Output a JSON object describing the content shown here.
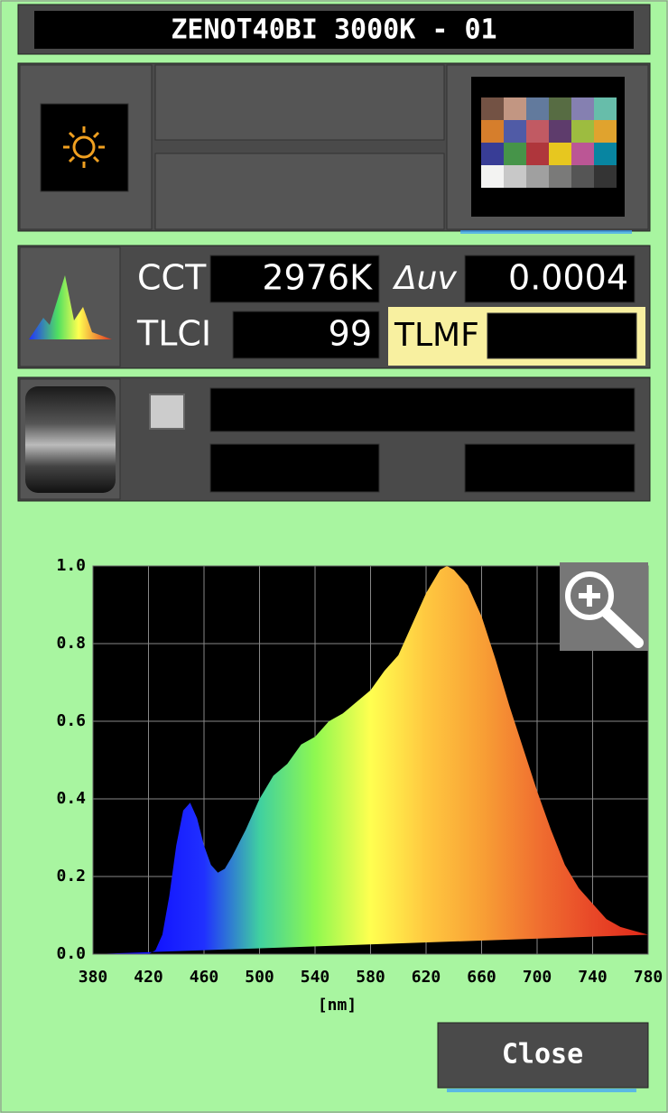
{
  "header": {
    "title": "ZENOT40BI 3000K - 01"
  },
  "measurements": {
    "cct": {
      "label": "CCT",
      "value": "2976K"
    },
    "duv": {
      "label": "Δuv",
      "value": "0.0004"
    },
    "tlci": {
      "label": "TLCI",
      "value": "99"
    },
    "tlmf": {
      "label": "TLMF"
    }
  },
  "chart_data": {
    "type": "area",
    "x": [
      380,
      390,
      400,
      410,
      420,
      425,
      430,
      435,
      440,
      445,
      450,
      455,
      460,
      465,
      470,
      475,
      480,
      490,
      500,
      510,
      520,
      530,
      540,
      550,
      560,
      570,
      580,
      590,
      600,
      610,
      620,
      630,
      635,
      640,
      650,
      660,
      670,
      680,
      690,
      700,
      710,
      720,
      730,
      740,
      750,
      760,
      770,
      780
    ],
    "values": [
      0,
      0,
      0,
      0,
      0,
      0.01,
      0.05,
      0.15,
      0.28,
      0.37,
      0.39,
      0.35,
      0.28,
      0.23,
      0.21,
      0.22,
      0.25,
      0.32,
      0.4,
      0.46,
      0.49,
      0.54,
      0.56,
      0.6,
      0.62,
      0.65,
      0.68,
      0.73,
      0.77,
      0.85,
      0.93,
      0.99,
      1.0,
      0.99,
      0.95,
      0.87,
      0.76,
      0.64,
      0.53,
      0.42,
      0.32,
      0.23,
      0.17,
      0.13,
      0.09,
      0.07,
      0.06,
      0.05
    ],
    "xlabel": "[nm]",
    "xlim": [
      380,
      780
    ],
    "ylim": [
      0,
      1
    ],
    "xticks": [
      380,
      420,
      460,
      500,
      540,
      580,
      620,
      660,
      700,
      740,
      780
    ],
    "yticks": [
      {
        "value": 0,
        "label": "0.0"
      },
      {
        "value": 0.2,
        "label": "0.2"
      },
      {
        "value": 0.4,
        "label": "0.4"
      },
      {
        "value": 0.6,
        "label": "0.6"
      },
      {
        "value": 0.8,
        "label": "0.8"
      },
      {
        "value": 1,
        "label": "1.0"
      }
    ],
    "grid": true,
    "gradient": [
      "#2000ff",
      "#1010ff",
      "#2030ff",
      "#40d0a0",
      "#8ef850",
      "#ffff50",
      "#ffc840",
      "#f8a035",
      "#f07030",
      "#e84828",
      "#e02818"
    ]
  },
  "buttons": {
    "close": "Close"
  }
}
